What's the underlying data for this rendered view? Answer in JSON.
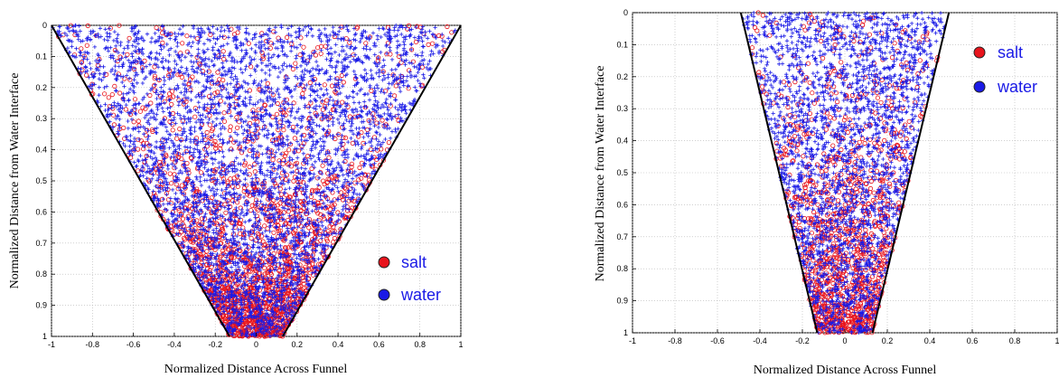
{
  "chart_data": [
    {
      "type": "scatter",
      "title": "",
      "xlabel": "Normalized Distance Across Funnel",
      "ylabel": "Normalized Distance from Water Interface",
      "xlim": [
        -1,
        1
      ],
      "ylim": [
        0,
        1
      ],
      "y_reversed": true,
      "xticks": [
        "-1",
        "-0.8",
        "-0.6",
        "-0.4",
        "-0.2",
        "0",
        "0.2",
        "0.4",
        "0.6",
        "0.8",
        "1"
      ],
      "yticks": [
        "0",
        "0.1",
        "0.2",
        "0.3",
        "0.4",
        "0.5",
        "0.6",
        "0.7",
        "0.8",
        "0.9",
        "1"
      ],
      "grid": true,
      "legend_position": "bottom-right",
      "funnel": {
        "top_half_width": 1.0,
        "bottom_half_width": 0.13
      },
      "series": [
        {
          "name": "salt",
          "color": "#e8141c",
          "marker": "circle",
          "density_trend": "increasing with depth"
        },
        {
          "name": "water",
          "color": "#1a1ae6",
          "marker": "plus",
          "density_trend": "decreasing with depth"
        }
      ]
    },
    {
      "type": "scatter",
      "title": "",
      "xlabel": "Normalized Distance Across Funnel",
      "ylabel": "Normalized Distance from Water Interface",
      "xlim": [
        -1,
        1
      ],
      "ylim": [
        0,
        1
      ],
      "y_reversed": true,
      "xticks": [
        "-1",
        "-0.8",
        "-0.6",
        "-0.4",
        "-0.2",
        "0",
        "0.2",
        "0.4",
        "0.6",
        "0.8",
        "1"
      ],
      "yticks": [
        "0",
        "0.1",
        "0.2",
        "0.3",
        "0.4",
        "0.5",
        "0.6",
        "0.7",
        "0.8",
        "0.9",
        "1"
      ],
      "grid": true,
      "legend_position": "top-right",
      "funnel": {
        "top_half_width": 0.49,
        "bottom_half_width": 0.13
      },
      "series": [
        {
          "name": "salt",
          "color": "#e8141c",
          "marker": "circle",
          "density_trend": "increasing with depth"
        },
        {
          "name": "water",
          "color": "#1a1ae6",
          "marker": "plus",
          "density_trend": "decreasing with depth"
        }
      ]
    }
  ]
}
